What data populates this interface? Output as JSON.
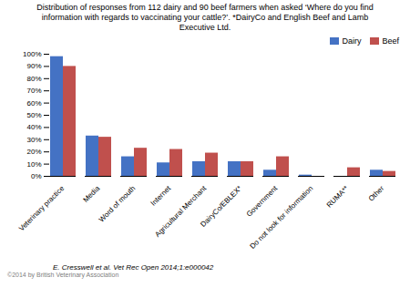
{
  "chart_data": {
    "type": "bar",
    "title": "Distribution of responses from 112 dairy and 90 beef farmers when asked ‘Where do you find\ninformation with regards to vaccinating your cattle?’. *DairyCo and English Beef and Lamb\nExecutive Ltd.",
    "categories": [
      "Veterinary practice",
      "Media",
      "Word of mouth",
      "Internet",
      "Agricultural Merchant",
      "DairyCo/EBLEX*",
      "Government",
      "Do not look for information",
      "RUMA**",
      "Other"
    ],
    "series": [
      {
        "name": "Dairy",
        "color": "#4472C4",
        "values": [
          98,
          33,
          16,
          11,
          12,
          12,
          5,
          1,
          0,
          5
        ]
      },
      {
        "name": "Beef",
        "color": "#C0504D",
        "values": [
          90,
          32,
          23,
          22,
          19,
          12,
          16,
          0,
          7,
          4
        ]
      }
    ],
    "ylim": [
      0,
      100
    ],
    "yticks": [
      {
        "value": 0,
        "label": "0%"
      },
      {
        "value": 10,
        "label": "10%"
      },
      {
        "value": 20,
        "label": "20%"
      },
      {
        "value": 30,
        "label": "30%"
      },
      {
        "value": 40,
        "label": "40%"
      },
      {
        "value": 50,
        "label": "50%"
      },
      {
        "value": 60,
        "label": "60%"
      },
      {
        "value": 70,
        "label": "70%"
      },
      {
        "value": 80,
        "label": "80%"
      },
      {
        "value": 90,
        "label": "90%"
      },
      {
        "value": 100,
        "label": "100%"
      }
    ],
    "annotations": [
      "E. Cresswell et al. Vet Rec Open 2014;1:e000042",
      "©2014 by British Veterinary Association"
    ],
    "legend": "upper right",
    "grid": false
  }
}
